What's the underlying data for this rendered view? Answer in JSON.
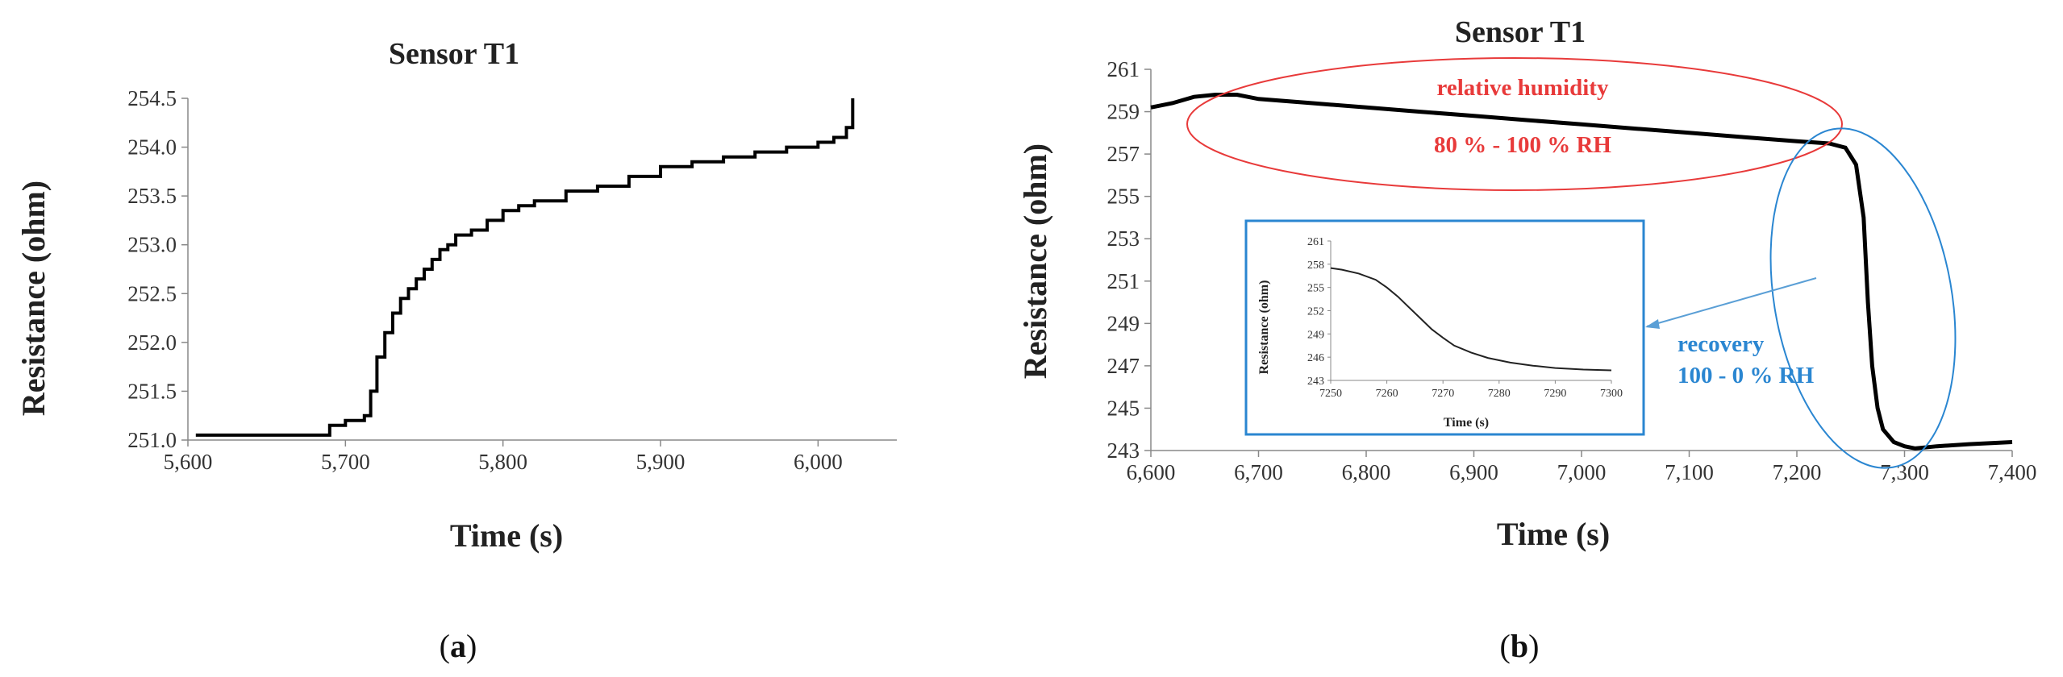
{
  "chart_data": [
    {
      "type": "line",
      "panel": "a",
      "title": "Sensor T1",
      "xlabel": "Time (s)",
      "ylabel": "Resistance (ohm)",
      "xlim": [
        5600,
        6050
      ],
      "ylim": [
        251.0,
        254.5
      ],
      "x_ticks": [
        "5,600",
        "5,700",
        "5,800",
        "5,900",
        "6,000"
      ],
      "y_ticks": [
        "251.0",
        "251.5",
        "252.0",
        "252.5",
        "253.0",
        "253.5",
        "254.0",
        "254.5"
      ],
      "series": [
        {
          "color": "#000000",
          "x": [
            5605,
            5690,
            5700,
            5712,
            5716,
            5720,
            5725,
            5730,
            5735,
            5740,
            5745,
            5750,
            5755,
            5760,
            5765,
            5770,
            5780,
            5790,
            5800,
            5810,
            5820,
            5840,
            5860,
            5880,
            5900,
            5920,
            5940,
            5960,
            5980,
            6000,
            6010,
            6018,
            6022
          ],
          "y": [
            251.05,
            251.15,
            251.2,
            251.25,
            251.5,
            251.85,
            252.1,
            252.3,
            252.45,
            252.55,
            252.65,
            252.75,
            252.85,
            252.95,
            253.0,
            253.1,
            253.15,
            253.25,
            253.35,
            253.4,
            253.45,
            253.55,
            253.6,
            253.7,
            253.8,
            253.85,
            253.9,
            253.95,
            254.0,
            254.05,
            254.1,
            254.2,
            254.5
          ]
        }
      ],
      "caption": "a"
    },
    {
      "type": "line",
      "panel": "b",
      "title": "Sensor T1",
      "xlabel": "Time (s)",
      "ylabel": "Resistance (ohm)",
      "xlim": [
        6600,
        7400
      ],
      "ylim": [
        243,
        261
      ],
      "x_ticks": [
        "6,600",
        "6,700",
        "6,800",
        "6,900",
        "7,000",
        "7,100",
        "7,200",
        "7,300",
        "7,400"
      ],
      "y_ticks": [
        "243",
        "245",
        "247",
        "249",
        "251",
        "253",
        "255",
        "257",
        "259",
        "261"
      ],
      "series": [
        {
          "color": "#000000",
          "x": [
            6600,
            6620,
            6640,
            6660,
            6680,
            6700,
            6750,
            6800,
            6850,
            6900,
            6950,
            7000,
            7050,
            7100,
            7150,
            7200,
            7230,
            7245,
            7255,
            7262,
            7266,
            7270,
            7275,
            7280,
            7290,
            7300,
            7310,
            7330,
            7360,
            7400
          ],
          "y": [
            259.2,
            259.4,
            259.7,
            259.8,
            259.8,
            259.6,
            259.4,
            259.2,
            259.0,
            258.8,
            258.6,
            258.4,
            258.2,
            258.0,
            257.8,
            257.6,
            257.5,
            257.3,
            256.5,
            254.0,
            250.0,
            247.0,
            245.0,
            244.0,
            243.4,
            243.2,
            243.1,
            243.2,
            243.3,
            243.4
          ]
        }
      ],
      "annotations": {
        "humidity_line1": "relative humidity",
        "humidity_line2": "80 % - 100 % RH",
        "recovery_line1": "recovery",
        "recovery_line2": "100 - 0 % RH",
        "humidity_color": "#e83a3a",
        "recovery_color": "#2a86d1"
      },
      "inset": {
        "type": "line",
        "xlabel": "Time (s)",
        "ylabel": "Resistance (ohm)",
        "xlim": [
          7250,
          7300
        ],
        "ylim": [
          243,
          261
        ],
        "x_ticks": [
          "7250",
          "7260",
          "7270",
          "7280",
          "7290",
          "7300"
        ],
        "y_ticks": [
          "243",
          "246",
          "249",
          "252",
          "255",
          "258",
          "261"
        ],
        "x": [
          7250,
          7252,
          7255,
          7258,
          7260,
          7262,
          7264,
          7266,
          7268,
          7270,
          7272,
          7275,
          7278,
          7282,
          7286,
          7290,
          7295,
          7300
        ],
        "y": [
          257.5,
          257.3,
          256.8,
          256.0,
          255.0,
          253.8,
          252.4,
          251.0,
          249.6,
          248.5,
          247.5,
          246.6,
          245.9,
          245.3,
          244.9,
          244.6,
          244.4,
          244.3
        ]
      },
      "caption": "b"
    }
  ]
}
